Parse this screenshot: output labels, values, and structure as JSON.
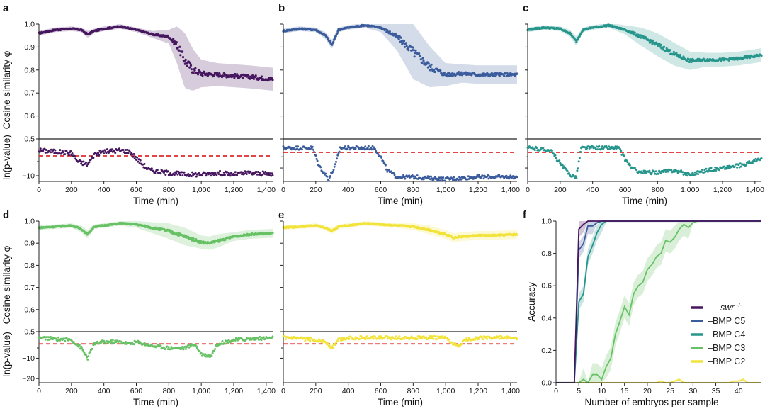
{
  "colors": {
    "swr": "#46175f",
    "bmp_c5": "#3b5c9c",
    "bmp_c4": "#26958b",
    "bmp_c3": "#67c165",
    "bmp_c2": "#f2e33a",
    "threshold": "#dd2b2b"
  },
  "labels": {
    "cosine_ylabel": "Cosine similarity φ",
    "pvalue_ylabel": "ln(p-value)",
    "time_xlabel": "Time (min)",
    "accuracy_ylabel": "Accuracy",
    "accuracy_xlabel": "Number of embryos per sample"
  },
  "ticks": {
    "time": [
      "0",
      "200",
      "400",
      "600",
      "800",
      "1,000",
      "1,200",
      "1,400"
    ],
    "cos_top": [
      "1.0",
      "0.9",
      "0.8",
      "0.7",
      "0.6",
      "0.5"
    ],
    "pval_ab": [
      "−10"
    ],
    "pval_de": [
      "−10",
      "−20"
    ],
    "acc_x": [
      "0",
      "5",
      "10",
      "15",
      "20",
      "25",
      "30",
      "35",
      "40"
    ],
    "acc_y": [
      "1.0",
      "0.8",
      "0.6",
      "0.4",
      "0.2",
      "0.0"
    ]
  },
  "legend": [
    "swr -/-",
    "–BMP C5",
    "–BMP C4",
    "–BMP C3",
    "–BMP C2"
  ],
  "chart_data": [
    {
      "panel": "a",
      "type": "scatter",
      "series_name": "swr -/-",
      "xlabel": "Time (min)",
      "ylabel": "Cosine similarity φ",
      "xlim": [
        0,
        1440
      ],
      "ylim": [
        0.5,
        1.0
      ],
      "x": [
        0,
        100,
        200,
        260,
        300,
        340,
        400,
        500,
        600,
        700,
        800,
        850,
        900,
        950,
        1000,
        1100,
        1200,
        1300,
        1440
      ],
      "y": [
        0.96,
        0.975,
        0.98,
        0.975,
        0.955,
        0.97,
        0.98,
        0.99,
        0.975,
        0.955,
        0.945,
        0.91,
        0.84,
        0.8,
        0.785,
        0.78,
        0.775,
        0.77,
        0.76
      ],
      "band": [
        0.01,
        0.01,
        0.01,
        0.01,
        0.015,
        0.01,
        0.01,
        0.01,
        0.01,
        0.015,
        0.03,
        0.08,
        0.12,
        0.09,
        0.06,
        0.05,
        0.05,
        0.05,
        0.05
      ],
      "pvalue": {
        "ylabel": "ln(p-value)",
        "ylim": [
          -12,
          3
        ],
        "threshold": -3,
        "x": [
          0,
          200,
          240,
          300,
          340,
          400,
          500,
          560,
          620,
          680,
          800,
          900,
          1000,
          1100,
          1200,
          1300,
          1440
        ],
        "y": [
          -1,
          -2,
          -5,
          -6,
          -2.5,
          -1.5,
          -1,
          -1.5,
          -5,
          -8,
          -9,
          -9.5,
          -9.5,
          -9,
          -9.5,
          -9,
          -9.5
        ]
      }
    },
    {
      "panel": "b",
      "type": "scatter",
      "series_name": "–BMP C5",
      "xlabel": "Time (min)",
      "ylabel": "Cosine similarity φ",
      "xlim": [
        0,
        1440
      ],
      "ylim": [
        0.5,
        1.0
      ],
      "x": [
        0,
        100,
        200,
        260,
        300,
        340,
        400,
        500,
        600,
        700,
        800,
        900,
        1000,
        1100,
        1200,
        1300,
        1440
      ],
      "y": [
        0.97,
        0.98,
        0.975,
        0.95,
        0.91,
        0.975,
        0.985,
        0.995,
        0.985,
        0.945,
        0.88,
        0.815,
        0.78,
        0.785,
        0.78,
        0.78,
        0.78
      ],
      "band": [
        0.01,
        0.01,
        0.01,
        0.015,
        0.02,
        0.01,
        0.01,
        0.01,
        0.02,
        0.06,
        0.12,
        0.09,
        0.05,
        0.04,
        0.04,
        0.04,
        0.04
      ],
      "pvalue": {
        "ylabel": "ln(p-value)",
        "ylim": [
          -16,
          3
        ],
        "threshold": -3,
        "x": [
          0,
          180,
          220,
          280,
          320,
          350,
          560,
          600,
          640,
          700,
          800,
          1000,
          1200,
          1440
        ],
        "y": [
          -1,
          -1,
          -9,
          -15,
          -9,
          -1,
          -1,
          -5,
          -11,
          -14,
          -14,
          -15,
          -14,
          -14
        ]
      }
    },
    {
      "panel": "c",
      "type": "scatter",
      "series_name": "–BMP C4",
      "xlabel": "Time (min)",
      "ylabel": "Cosine similarity φ",
      "xlim": [
        0,
        1440
      ],
      "ylim": [
        0.5,
        1.0
      ],
      "x": [
        0,
        100,
        200,
        260,
        300,
        340,
        400,
        500,
        600,
        700,
        800,
        900,
        1000,
        1100,
        1200,
        1300,
        1440
      ],
      "y": [
        0.975,
        0.985,
        0.98,
        0.96,
        0.925,
        0.975,
        0.985,
        0.995,
        0.975,
        0.945,
        0.91,
        0.87,
        0.84,
        0.845,
        0.845,
        0.85,
        0.865
      ],
      "band": [
        0.01,
        0.01,
        0.01,
        0.015,
        0.02,
        0.01,
        0.01,
        0.01,
        0.02,
        0.04,
        0.05,
        0.05,
        0.04,
        0.03,
        0.03,
        0.03,
        0.03
      ],
      "pvalue": {
        "ylabel": "ln(p-value)",
        "ylim": [
          -16,
          3
        ],
        "threshold": -3,
        "x": [
          0,
          140,
          200,
          260,
          300,
          330,
          560,
          600,
          640,
          700,
          800,
          900,
          1000,
          1100,
          1200,
          1300,
          1440
        ],
        "y": [
          -1,
          -2,
          -8,
          -13,
          -14,
          -1,
          -1,
          -6,
          -10,
          -12,
          -12,
          -11,
          -13,
          -11,
          -10,
          -9,
          -6
        ]
      }
    },
    {
      "panel": "d",
      "type": "scatter",
      "series_name": "–BMP C3",
      "xlabel": "Time (min)",
      "ylabel": "Cosine similarity φ",
      "xlim": [
        0,
        1440
      ],
      "ylim": [
        0.5,
        1.0
      ],
      "x": [
        0,
        100,
        200,
        260,
        300,
        340,
        400,
        500,
        600,
        700,
        800,
        900,
        1000,
        1050,
        1100,
        1200,
        1300,
        1440
      ],
      "y": [
        0.97,
        0.975,
        0.98,
        0.965,
        0.94,
        0.975,
        0.98,
        0.99,
        0.985,
        0.97,
        0.955,
        0.93,
        0.905,
        0.9,
        0.91,
        0.93,
        0.94,
        0.945
      ],
      "band": [
        0.01,
        0.01,
        0.01,
        0.015,
        0.02,
        0.01,
        0.01,
        0.01,
        0.015,
        0.025,
        0.035,
        0.04,
        0.03,
        0.03,
        0.03,
        0.02,
        0.02,
        0.02
      ],
      "pvalue": {
        "ylabel": "ln(p-value)",
        "ylim": [
          -22,
          3
        ],
        "threshold": -3,
        "x": [
          0,
          200,
          260,
          300,
          340,
          400,
          500,
          560,
          600,
          700,
          800,
          900,
          960,
          1000,
          1060,
          1100,
          1200,
          1440
        ],
        "y": [
          0,
          -1,
          -5,
          -10,
          -3,
          -2,
          -2,
          -3,
          -2,
          -4,
          -5,
          -5,
          -3,
          -8,
          -9,
          -3,
          -1,
          0
        ]
      }
    },
    {
      "panel": "e",
      "type": "scatter",
      "series_name": "–BMP C2",
      "xlabel": "Time (min)",
      "ylabel": "Cosine similarity φ",
      "xlim": [
        0,
        1440
      ],
      "ylim": [
        0.5,
        1.0
      ],
      "x": [
        0,
        100,
        200,
        260,
        300,
        340,
        400,
        500,
        600,
        700,
        800,
        900,
        1000,
        1050,
        1100,
        1200,
        1300,
        1440
      ],
      "y": [
        0.97,
        0.975,
        0.98,
        0.97,
        0.955,
        0.975,
        0.98,
        0.99,
        0.985,
        0.98,
        0.975,
        0.96,
        0.94,
        0.925,
        0.93,
        0.935,
        0.935,
        0.94
      ],
      "band": [
        0.01,
        0.01,
        0.01,
        0.01,
        0.015,
        0.01,
        0.01,
        0.01,
        0.01,
        0.01,
        0.015,
        0.02,
        0.02,
        0.02,
        0.02,
        0.02,
        0.02,
        0.02
      ],
      "pvalue": {
        "ylabel": "ln(p-value)",
        "ylim": [
          -22,
          3
        ],
        "threshold": -3,
        "x": [
          0,
          200,
          260,
          300,
          340,
          400,
          600,
          800,
          1000,
          1040,
          1080,
          1120,
          1200,
          1440
        ],
        "y": [
          0,
          -1,
          -2,
          -5,
          -1,
          0,
          0,
          0,
          0,
          -3,
          -4,
          -1,
          0,
          0
        ]
      }
    },
    {
      "panel": "f",
      "type": "line",
      "xlabel": "Number of embryos per sample",
      "ylabel": "Accuracy",
      "xlim": [
        0,
        45
      ],
      "ylim": [
        0,
        1.0
      ],
      "series": [
        {
          "name": "swr -/-",
          "x": [
            0,
            4,
            5,
            6,
            7,
            8,
            45
          ],
          "y": [
            0,
            0,
            0.95,
            0.98,
            1.0,
            1.0,
            1.0
          ]
        },
        {
          "name": "–BMP C5",
          "x": [
            0,
            4,
            5,
            6,
            7,
            8,
            9,
            10,
            45
          ],
          "y": [
            0,
            0,
            0.82,
            0.86,
            0.97,
            0.97,
            0.99,
            1.0,
            1.0
          ]
        },
        {
          "name": "–BMP C4",
          "x": [
            0,
            4,
            5,
            6,
            7,
            8,
            9,
            10,
            11,
            45
          ],
          "y": [
            0,
            0,
            0.5,
            0.55,
            0.78,
            0.85,
            0.93,
            0.98,
            1.0,
            1.0
          ]
        },
        {
          "name": "–BMP C3",
          "x": [
            0,
            4,
            5,
            6,
            7,
            8,
            9,
            10,
            11,
            12,
            13,
            14,
            15,
            16,
            17,
            18,
            19,
            20,
            21,
            22,
            23,
            24,
            25,
            26,
            27,
            28,
            29,
            30,
            31,
            32,
            33,
            45
          ],
          "y": [
            0,
            0,
            0.0,
            0.02,
            0.0,
            0.05,
            0.05,
            0.02,
            0.1,
            0.15,
            0.3,
            0.38,
            0.47,
            0.42,
            0.55,
            0.6,
            0.62,
            0.7,
            0.73,
            0.78,
            0.8,
            0.88,
            0.87,
            0.9,
            0.95,
            0.98,
            0.96,
            0.99,
            1.0,
            1.0,
            1.0,
            1.0
          ]
        },
        {
          "name": "–BMP C2",
          "x": [
            0,
            22,
            23,
            24,
            25,
            26,
            27,
            28,
            29,
            38,
            39,
            40,
            41,
            42,
            45
          ],
          "y": [
            0,
            0,
            0.01,
            0.0,
            0.0,
            0.01,
            0.02,
            0.0,
            0.0,
            0.0,
            0.01,
            0.01,
            0.02,
            0.0,
            0.0
          ]
        }
      ]
    }
  ]
}
